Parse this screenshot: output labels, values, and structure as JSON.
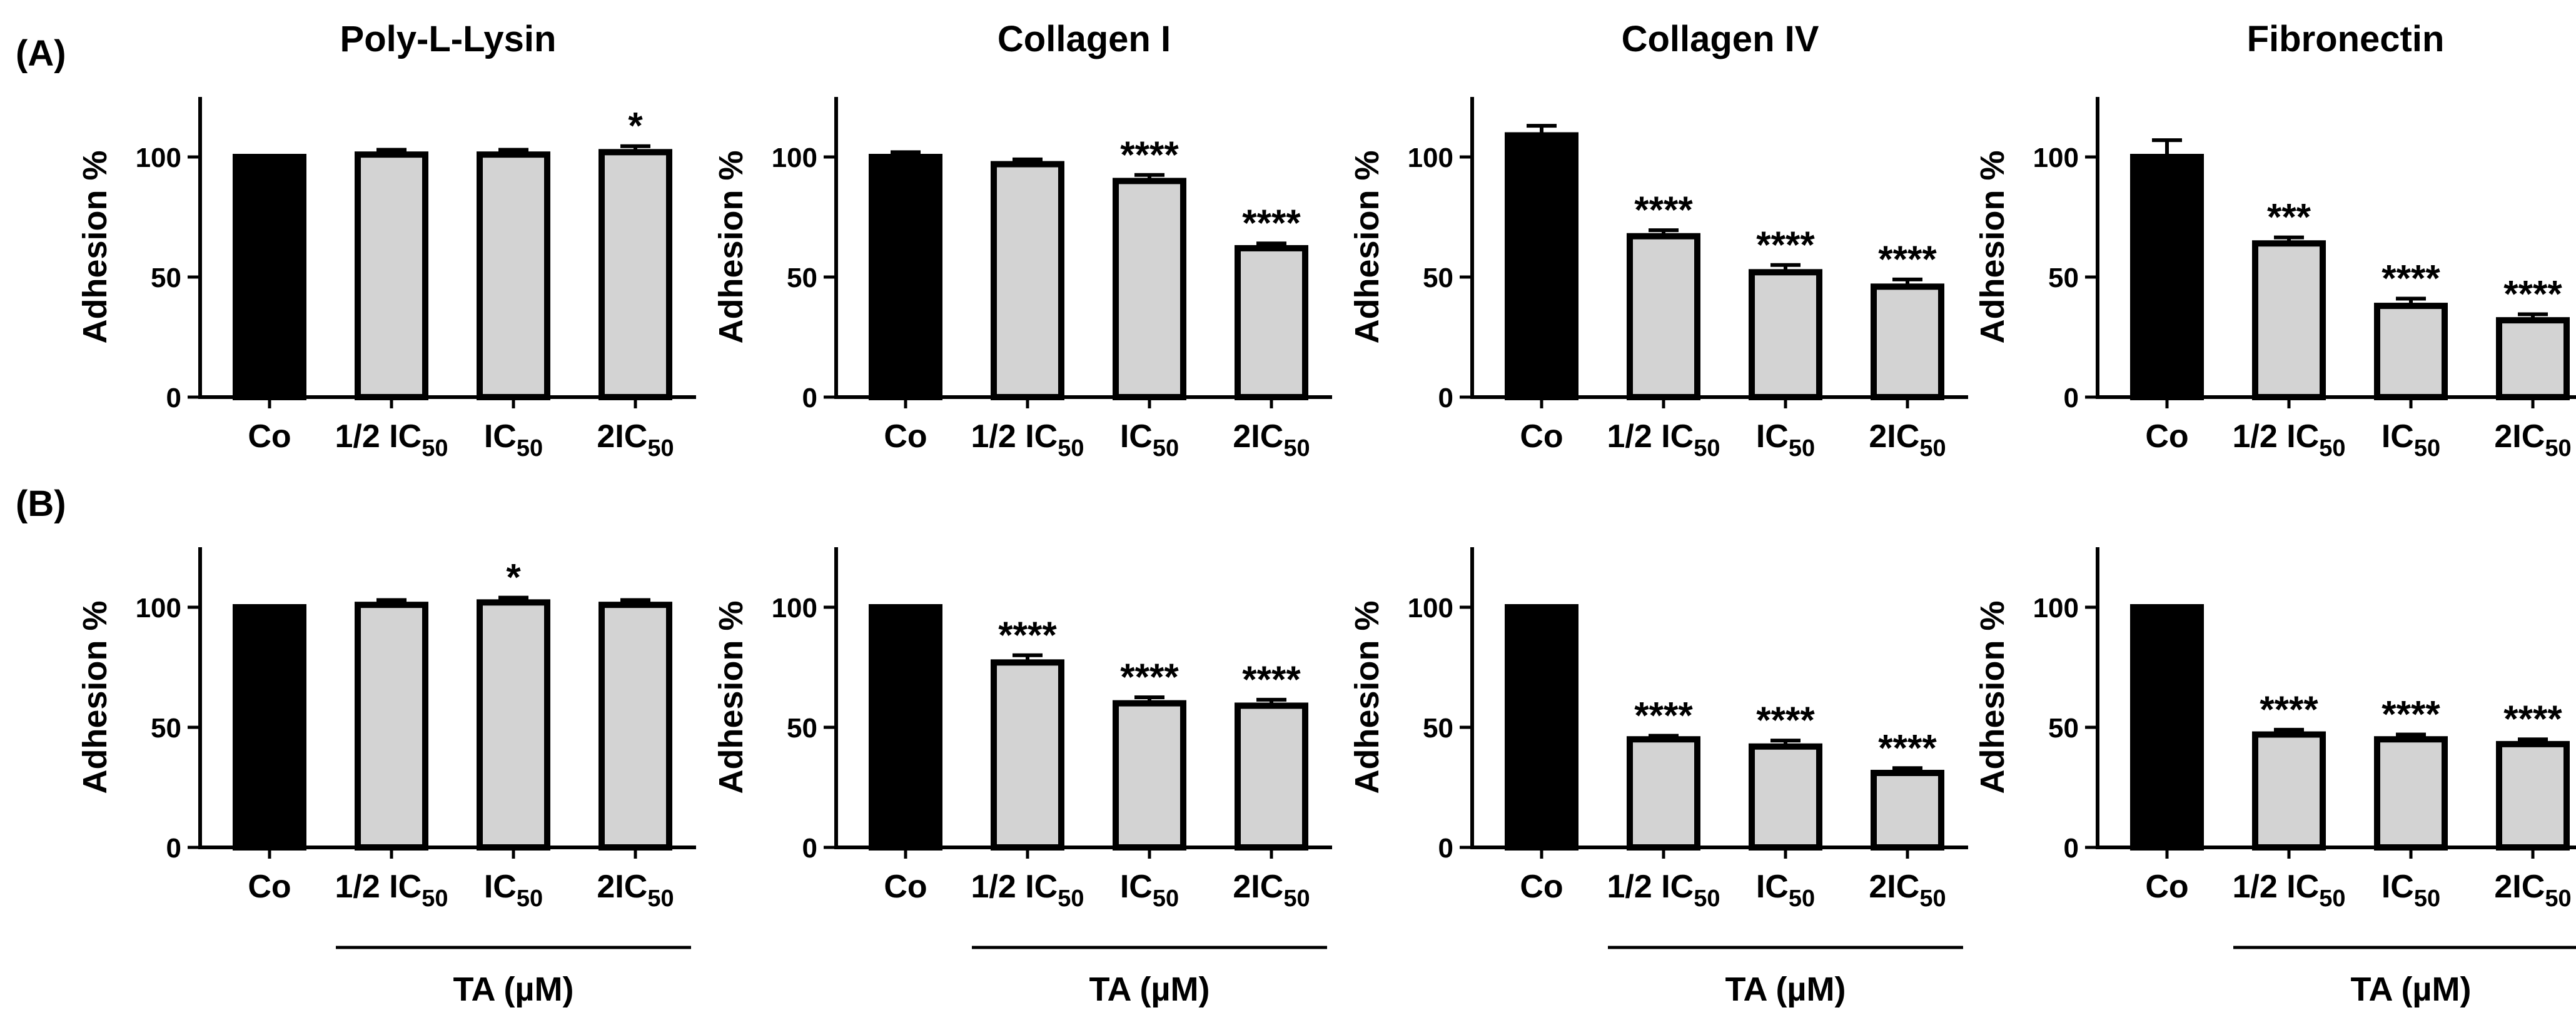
{
  "figure": {
    "row_labels": [
      "(A)",
      "(B)"
    ],
    "group_label": "TA (µM)"
  },
  "chart_data": [
    {
      "type": "bar",
      "row": "(A)",
      "title": "Poly-L-Lysin",
      "ylabel": "Adhesion %",
      "ylim": [
        0,
        125
      ],
      "yticks": [
        0,
        50,
        100
      ],
      "categories": [
        "Co",
        "1/2 IC50",
        "IC50",
        "2IC50"
      ],
      "values": [
        100,
        101,
        101,
        102
      ],
      "errors": [
        0,
        2,
        2,
        2.5
      ],
      "significance": [
        "",
        "",
        "",
        "*"
      ]
    },
    {
      "type": "bar",
      "row": "(A)",
      "title": "Collagen I",
      "ylabel": "Adhesion %",
      "ylim": [
        0,
        125
      ],
      "yticks": [
        0,
        50,
        100
      ],
      "categories": [
        "Co",
        "1/2 IC50",
        "IC50",
        "2IC50"
      ],
      "values": [
        100,
        97,
        90,
        62
      ],
      "errors": [
        2,
        2,
        2.5,
        2
      ],
      "significance": [
        "",
        "",
        "****",
        "****"
      ]
    },
    {
      "type": "bar",
      "row": "(A)",
      "title": "Collagen IV",
      "ylabel": "Adhesion %",
      "ylim": [
        0,
        125
      ],
      "yticks": [
        0,
        50,
        100
      ],
      "categories": [
        "Co",
        "1/2 IC50",
        "IC50",
        "2IC50"
      ],
      "values": [
        109,
        67,
        52,
        46
      ],
      "errors": [
        4,
        2.5,
        3,
        3
      ],
      "significance": [
        "",
        "****",
        "****",
        "****"
      ]
    },
    {
      "type": "bar",
      "row": "(A)",
      "title": "Fibronectin",
      "ylabel": "Adhesion %",
      "ylim": [
        0,
        125
      ],
      "yticks": [
        0,
        50,
        100
      ],
      "categories": [
        "Co",
        "1/2 IC50",
        "IC50",
        "2IC50"
      ],
      "values": [
        100,
        64,
        38,
        32
      ],
      "errors": [
        7,
        2.5,
        3,
        2.5
      ],
      "significance": [
        "",
        "***",
        "****",
        "****"
      ]
    },
    {
      "type": "bar",
      "row": "(B)",
      "title": "",
      "ylabel": "Adhesion %",
      "ylim": [
        0,
        125
      ],
      "yticks": [
        0,
        50,
        100
      ],
      "categories": [
        "Co",
        "1/2 IC50",
        "IC50",
        "2IC50"
      ],
      "values": [
        100,
        101,
        102,
        101
      ],
      "errors": [
        0,
        2,
        2,
        2
      ],
      "significance": [
        "",
        "",
        "*",
        ""
      ]
    },
    {
      "type": "bar",
      "row": "(B)",
      "title": "",
      "ylabel": "Adhesion %",
      "ylim": [
        0,
        125
      ],
      "yticks": [
        0,
        50,
        100
      ],
      "categories": [
        "Co",
        "1/2 IC50",
        "IC50",
        "2IC50"
      ],
      "values": [
        100,
        77,
        60,
        59
      ],
      "errors": [
        0,
        3,
        2.5,
        2.5
      ],
      "significance": [
        "",
        "****",
        "****",
        "****"
      ]
    },
    {
      "type": "bar",
      "row": "(B)",
      "title": "",
      "ylabel": "Adhesion %",
      "ylim": [
        0,
        125
      ],
      "yticks": [
        0,
        50,
        100
      ],
      "categories": [
        "Co",
        "1/2 IC50",
        "IC50",
        "2IC50"
      ],
      "values": [
        100,
        45,
        42,
        31
      ],
      "errors": [
        0,
        1.5,
        2.5,
        2
      ],
      "significance": [
        "",
        "****",
        "****",
        "****"
      ]
    },
    {
      "type": "bar",
      "row": "(B)",
      "title": "",
      "ylabel": "Adhesion %",
      "ylim": [
        0,
        125
      ],
      "yticks": [
        0,
        50,
        100
      ],
      "categories": [
        "Co",
        "1/2 IC50",
        "IC50",
        "2IC50"
      ],
      "values": [
        100,
        47,
        45,
        43
      ],
      "errors": [
        0,
        2,
        2,
        2
      ],
      "significance": [
        "",
        "****",
        "****",
        "****"
      ]
    }
  ],
  "colors": {
    "control": "#000000",
    "treated": "#d3d3d3",
    "stroke": "#000000"
  }
}
